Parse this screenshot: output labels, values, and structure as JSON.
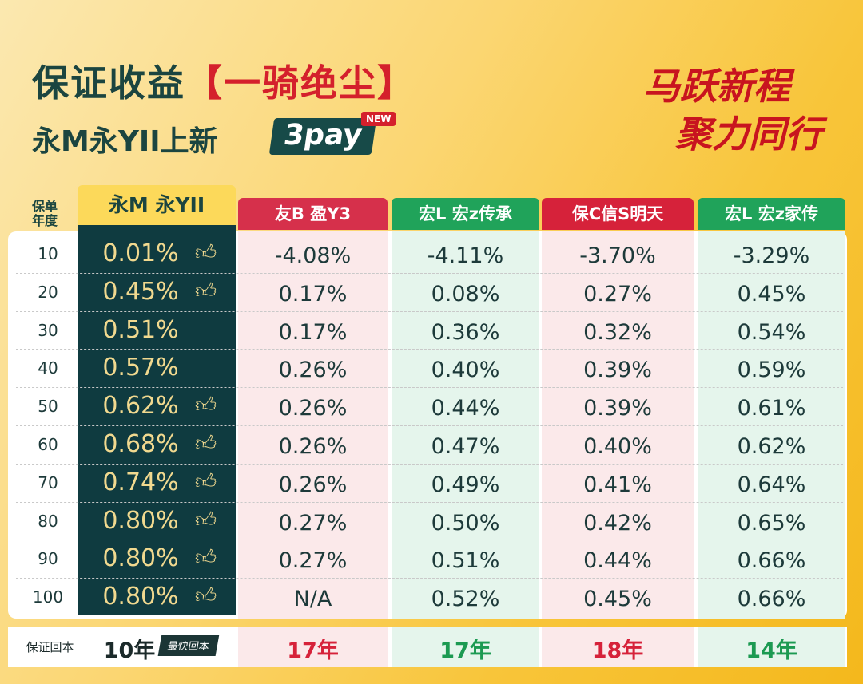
{
  "header": {
    "title": "保证收益",
    "title_highlight": "【一骑绝尘】",
    "subtitle": "永M永YII上新",
    "badge": "3pay",
    "badge_tag": "NEW"
  },
  "slogan": [
    "马跃新程",
    "聚力同行"
  ],
  "table": {
    "corner": [
      "保单",
      "年度"
    ],
    "columns": [
      "永M 永YII",
      "友B 盈Y3",
      "宏L 宏z传承",
      "保C信S明天",
      "宏L 宏z家传"
    ],
    "rows": [
      {
        "year": "10",
        "values": [
          "0.01%",
          "-4.08%",
          "-4.11%",
          "-3.70%",
          "-3.29%"
        ],
        "thumb": true
      },
      {
        "year": "20",
        "values": [
          "0.45%",
          "0.17%",
          "0.08%",
          "0.27%",
          "0.45%"
        ],
        "thumb": true
      },
      {
        "year": "30",
        "values": [
          "0.51%",
          "0.17%",
          "0.36%",
          "0.32%",
          "0.54%"
        ],
        "thumb": false
      },
      {
        "year": "40",
        "values": [
          "0.57%",
          "0.26%",
          "0.40%",
          "0.39%",
          "0.59%"
        ],
        "thumb": false
      },
      {
        "year": "50",
        "values": [
          "0.62%",
          "0.26%",
          "0.44%",
          "0.39%",
          "0.61%"
        ],
        "thumb": true
      },
      {
        "year": "60",
        "values": [
          "0.68%",
          "0.26%",
          "0.47%",
          "0.40%",
          "0.62%"
        ],
        "thumb": true
      },
      {
        "year": "70",
        "values": [
          "0.74%",
          "0.26%",
          "0.49%",
          "0.41%",
          "0.64%"
        ],
        "thumb": true
      },
      {
        "year": "80",
        "values": [
          "0.80%",
          "0.27%",
          "0.50%",
          "0.42%",
          "0.65%"
        ],
        "thumb": true
      },
      {
        "year": "90",
        "values": [
          "0.80%",
          "0.27%",
          "0.51%",
          "0.44%",
          "0.66%"
        ],
        "thumb": true
      },
      {
        "year": "100",
        "values": [
          "0.80%",
          "N/A",
          "0.52%",
          "0.45%",
          "0.66%"
        ],
        "thumb": true
      }
    ],
    "footer": {
      "label": "保证回本",
      "values": [
        "10年",
        "17年",
        "17年",
        "18年",
        "14年"
      ],
      "tag": "最快回本"
    }
  }
}
